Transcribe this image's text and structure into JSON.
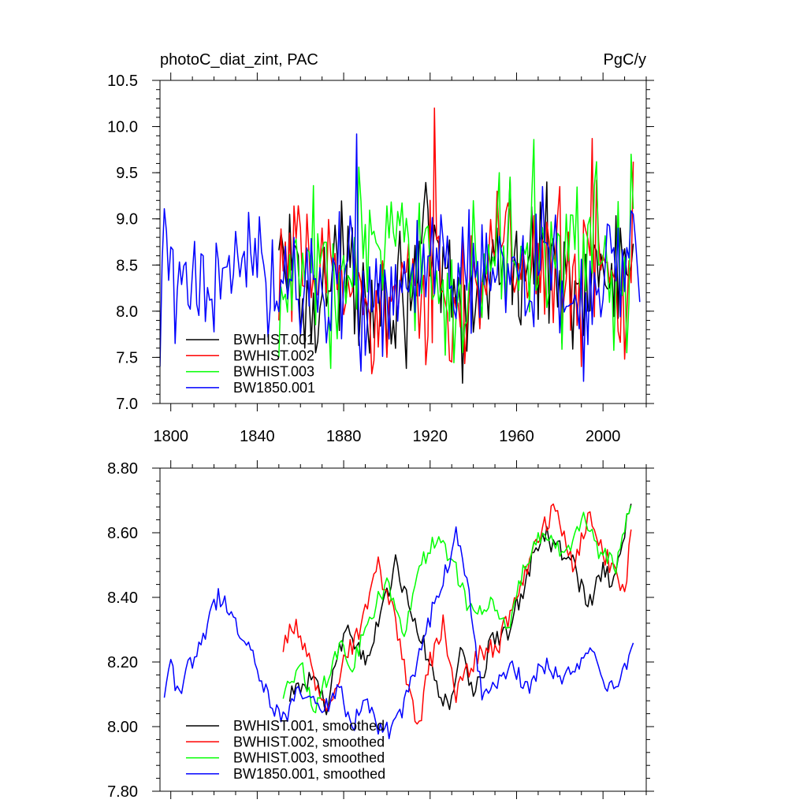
{
  "figure": {
    "title_left": "photoC_diat_zint, PAC",
    "title_right": "PgC/y"
  },
  "colors": {
    "BWHIST.001": "#000000",
    "BWHIST.002": "#ff0000",
    "BWHIST.003": "#00ff00",
    "BW1850.001": "#0000ff"
  },
  "chart_data": [
    {
      "type": "line",
      "title": "photoC_diat_zint, PAC",
      "units": "PgC/y",
      "xlim": [
        1795,
        2020
      ],
      "ylim": [
        7.0,
        10.5
      ],
      "xticks": [
        1800,
        1840,
        1880,
        1920,
        1960,
        2000
      ],
      "xtick_labels": [
        "1800",
        "1840",
        "1880",
        "1920",
        "1960",
        "2000"
      ],
      "yticks": [
        7.0,
        7.5,
        8.0,
        8.5,
        9.0,
        9.5,
        10.0,
        10.5
      ],
      "ytick_labels": [
        "7.0",
        "7.5",
        "8.0",
        "8.5",
        "9.0",
        "9.5",
        "10.0",
        "10.5"
      ],
      "legend": [
        "BWHIST.001",
        "BWHIST.002",
        "BWHIST.003",
        "BW1850.001"
      ],
      "legend_position": "bottom-left",
      "series": [
        {
          "name": "BWHIST.001",
          "color": "#000000",
          "x_start": 1850,
          "x_end": 2014,
          "mean": 8.3,
          "amplitude": 0.7,
          "anchors": [
            [
              1850,
              8.66
            ],
            [
              1855,
              9.05
            ],
            [
              1862,
              7.6
            ],
            [
              1880,
              8.6
            ],
            [
              1903,
              7.9
            ],
            [
              1919,
              9.1
            ],
            [
              1935,
              7.22
            ],
            [
              1951,
              8.9
            ],
            [
              1974,
              9.4
            ],
            [
              1993,
              8.0
            ],
            [
              2008,
              8.9
            ],
            [
              2014,
              8.73
            ]
          ]
        },
        {
          "name": "BWHIST.002",
          "color": "#ff0000",
          "x_start": 1850,
          "x_end": 2014,
          "mean": 8.3,
          "amplitude": 0.7,
          "anchors": [
            [
              1850,
              7.9
            ],
            [
              1853,
              8.75
            ],
            [
              1870,
              8.9
            ],
            [
              1900,
              7.5
            ],
            [
              1918,
              7.42
            ],
            [
              1922,
              10.2
            ],
            [
              1930,
              7.45
            ],
            [
              1951,
              9.3
            ],
            [
              1980,
              9.35
            ],
            [
              1990,
              7.4
            ],
            [
              1995,
              9.87
            ],
            [
              2010,
              7.48
            ],
            [
              2014,
              9.62
            ]
          ]
        },
        {
          "name": "BWHIST.003",
          "color": "#00ff00",
          "x_start": 1850,
          "x_end": 2014,
          "mean": 8.35,
          "amplitude": 0.7,
          "anchors": [
            [
              1850,
              7.5
            ],
            [
              1866,
              9.36
            ],
            [
              1874,
              7.38
            ],
            [
              1887,
              9.56
            ],
            [
              1915,
              9.17
            ],
            [
              1935,
              7.55
            ],
            [
              1952,
              9.5
            ],
            [
              1968,
              9.86
            ],
            [
              1983,
              9.05
            ],
            [
              1997,
              9.62
            ],
            [
              2011,
              7.55
            ],
            [
              2013,
              9.7
            ]
          ]
        },
        {
          "name": "BW1850.001",
          "color": "#0000ff",
          "x_start": 1795,
          "x_end": 2017,
          "mean": 8.3,
          "amplitude": 0.65,
          "anchors": [
            [
              1795,
              7.4
            ],
            [
              1797,
              9.11
            ],
            [
              1802,
              7.65
            ],
            [
              1815,
              8.6
            ],
            [
              1829,
              8.4
            ],
            [
              1836,
              9.07
            ],
            [
              1852,
              8.3
            ],
            [
              1876,
              8.5
            ],
            [
              1886,
              9.92
            ],
            [
              1888,
              7.35
            ],
            [
              1920,
              8.6
            ],
            [
              1938,
              9.1
            ],
            [
              1960,
              8.5
            ],
            [
              1972,
              9.35
            ],
            [
              1991,
              7.24
            ],
            [
              2007,
              8.9
            ],
            [
              2014,
              9.05
            ],
            [
              2017,
              8.1
            ]
          ]
        }
      ]
    },
    {
      "type": "line",
      "title": "",
      "xlim": [
        1795,
        2020
      ],
      "ylim": [
        7.8,
        8.8
      ],
      "xticks": [
        1800,
        1840,
        1880,
        1920,
        1960,
        2000
      ],
      "xtick_labels": [],
      "yticks": [
        7.8,
        8.0,
        8.2,
        8.4,
        8.6,
        8.8
      ],
      "ytick_labels": [
        "7.80",
        "8.00",
        "8.20",
        "8.40",
        "8.60",
        "8.80"
      ],
      "legend": [
        "BWHIST.001, smoothed",
        "BWHIST.002, smoothed",
        "BWHIST.003, smoothed",
        "BW1850.001, smoothed"
      ],
      "legend_position": "bottom-left",
      "series": [
        {
          "name": "BWHIST.001, smoothed",
          "color": "#000000",
          "x_start": 1855,
          "x_end": 2013,
          "noise": 0.035,
          "anchors": [
            [
              1855,
              8.1
            ],
            [
              1865,
              8.15
            ],
            [
              1872,
              8.05
            ],
            [
              1880,
              8.3
            ],
            [
              1890,
              8.2
            ],
            [
              1897,
              8.35
            ],
            [
              1904,
              8.5
            ],
            [
              1912,
              8.35
            ],
            [
              1922,
              8.15
            ],
            [
              1928,
              8.05
            ],
            [
              1935,
              8.25
            ],
            [
              1940,
              8.08
            ],
            [
              1948,
              8.25
            ],
            [
              1956,
              8.3
            ],
            [
              1964,
              8.45
            ],
            [
              1972,
              8.6
            ],
            [
              1980,
              8.55
            ],
            [
              1986,
              8.5
            ],
            [
              1993,
              8.38
            ],
            [
              2000,
              8.48
            ],
            [
              2005,
              8.45
            ],
            [
              2013,
              8.68
            ]
          ]
        },
        {
          "name": "BWHIST.002, smoothed",
          "color": "#ff0000",
          "x_start": 1852,
          "x_end": 2013,
          "noise": 0.035,
          "anchors": [
            [
              1852,
              8.25
            ],
            [
              1856,
              8.33
            ],
            [
              1864,
              8.2
            ],
            [
              1872,
              8.05
            ],
            [
              1880,
              8.2
            ],
            [
              1888,
              8.3
            ],
            [
              1896,
              8.5
            ],
            [
              1905,
              8.3
            ],
            [
              1914,
              7.98
            ],
            [
              1920,
              8.2
            ],
            [
              1926,
              8.32
            ],
            [
              1932,
              8.1
            ],
            [
              1942,
              8.22
            ],
            [
              1952,
              8.26
            ],
            [
              1962,
              8.45
            ],
            [
              1970,
              8.6
            ],
            [
              1978,
              8.68
            ],
            [
              1986,
              8.5
            ],
            [
              1994,
              8.65
            ],
            [
              2003,
              8.5
            ],
            [
              2010,
              8.42
            ],
            [
              2013,
              8.58
            ]
          ]
        },
        {
          "name": "BWHIST.003, smoothed",
          "color": "#00ff00",
          "x_start": 1852,
          "x_end": 2013,
          "noise": 0.03,
          "anchors": [
            [
              1852,
              8.1
            ],
            [
              1860,
              8.2
            ],
            [
              1866,
              8.05
            ],
            [
              1872,
              8.15
            ],
            [
              1878,
              8.25
            ],
            [
              1884,
              8.18
            ],
            [
              1890,
              8.3
            ],
            [
              1900,
              8.45
            ],
            [
              1908,
              8.3
            ],
            [
              1916,
              8.5
            ],
            [
              1924,
              8.6
            ],
            [
              1932,
              8.48
            ],
            [
              1938,
              8.35
            ],
            [
              1948,
              8.38
            ],
            [
              1956,
              8.3
            ],
            [
              1964,
              8.5
            ],
            [
              1972,
              8.6
            ],
            [
              1982,
              8.52
            ],
            [
              1990,
              8.65
            ],
            [
              1998,
              8.55
            ],
            [
              2006,
              8.5
            ],
            [
              2013,
              8.7
            ]
          ]
        },
        {
          "name": "BW1850.001, smoothed",
          "color": "#0000ff",
          "x_start": 1797,
          "x_end": 2014,
          "noise": 0.03,
          "anchors": [
            [
              1797,
              8.1
            ],
            [
              1800,
              8.22
            ],
            [
              1803,
              8.1
            ],
            [
              1808,
              8.18
            ],
            [
              1815,
              8.28
            ],
            [
              1822,
              8.4
            ],
            [
              1828,
              8.35
            ],
            [
              1834,
              8.28
            ],
            [
              1842,
              8.15
            ],
            [
              1848,
              8.05
            ],
            [
              1852,
              8.02
            ],
            [
              1860,
              8.12
            ],
            [
              1870,
              8.05
            ],
            [
              1878,
              8.12
            ],
            [
              1884,
              8.0
            ],
            [
              1890,
              8.08
            ],
            [
              1896,
              8.0
            ],
            [
              1902,
              7.98
            ],
            [
              1910,
              8.1
            ],
            [
              1918,
              8.3
            ],
            [
              1926,
              8.45
            ],
            [
              1932,
              8.6
            ],
            [
              1938,
              8.4
            ],
            [
              1944,
              8.1
            ],
            [
              1950,
              8.12
            ],
            [
              1958,
              8.2
            ],
            [
              1966,
              8.1
            ],
            [
              1972,
              8.2
            ],
            [
              1980,
              8.15
            ],
            [
              1988,
              8.18
            ],
            [
              1994,
              8.25
            ],
            [
              2000,
              8.15
            ],
            [
              2006,
              8.1
            ],
            [
              2014,
              8.26
            ]
          ]
        }
      ]
    }
  ]
}
